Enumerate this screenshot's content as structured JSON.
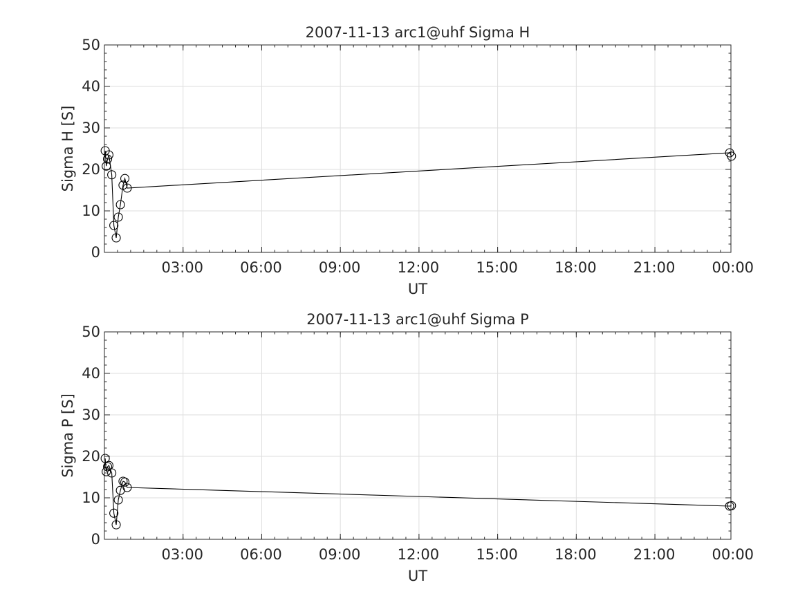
{
  "chart_data": [
    {
      "type": "line",
      "title": "2007-11-13  arc1@uhf Sigma H",
      "xlabel": "UT",
      "ylabel": "Sigma H [S]",
      "ylim": [
        0,
        50
      ],
      "yticks": [
        "0",
        "10",
        "20",
        "30",
        "40",
        "50"
      ],
      "xlim": [
        0.0,
        23.9
      ],
      "xticks": [
        {
          "hour": 3,
          "label": "03:00"
        },
        {
          "hour": 6,
          "label": "06:00"
        },
        {
          "hour": 9,
          "label": "09:00"
        },
        {
          "hour": 12,
          "label": "12:00"
        },
        {
          "hour": 15,
          "label": "15:00"
        },
        {
          "hour": 18,
          "label": "18:00"
        },
        {
          "hour": 21,
          "label": "21:00"
        },
        {
          "hour": 24,
          "label": "00:00"
        }
      ],
      "grid": true,
      "marker": "open-circle",
      "series": [
        {
          "x": [
            0.03,
            0.07,
            0.12,
            0.17,
            0.28,
            0.36,
            0.45,
            0.53,
            0.61,
            0.71,
            0.78,
            0.87,
            23.85,
            23.92
          ],
          "y": [
            24.5,
            20.8,
            22.5,
            23.5,
            18.7,
            6.5,
            3.5,
            8.5,
            11.5,
            16.2,
            17.8,
            15.5,
            24.0,
            23.2
          ]
        }
      ]
    },
    {
      "type": "line",
      "title": "2007-11-13  arc1@uhf Sigma P",
      "xlabel": "UT",
      "ylabel": "Sigma P [S]",
      "ylim": [
        0,
        50
      ],
      "yticks": [
        "0",
        "10",
        "20",
        "30",
        "40",
        "50"
      ],
      "xlim": [
        0.0,
        23.9
      ],
      "xticks": [
        {
          "hour": 3,
          "label": "03:00"
        },
        {
          "hour": 6,
          "label": "06:00"
        },
        {
          "hour": 9,
          "label": "09:00"
        },
        {
          "hour": 12,
          "label": "12:00"
        },
        {
          "hour": 15,
          "label": "15:00"
        },
        {
          "hour": 18,
          "label": "18:00"
        },
        {
          "hour": 21,
          "label": "21:00"
        },
        {
          "hour": 24,
          "label": "00:00"
        }
      ],
      "grid": true,
      "marker": "open-circle",
      "series": [
        {
          "x": [
            0.03,
            0.07,
            0.12,
            0.17,
            0.28,
            0.36,
            0.45,
            0.53,
            0.61,
            0.71,
            0.78,
            0.87,
            23.85,
            23.92
          ],
          "y": [
            19.5,
            16.3,
            17.5,
            17.8,
            16.0,
            6.3,
            3.5,
            9.5,
            11.8,
            14.0,
            13.8,
            12.5,
            8.0,
            8.1
          ]
        }
      ]
    }
  ]
}
